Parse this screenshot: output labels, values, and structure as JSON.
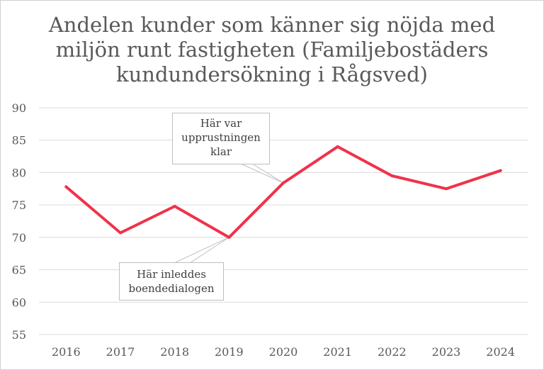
{
  "chart_data": {
    "type": "line",
    "title": "Andelen kunder som känner sig nöjda med miljön runt fastigheten (Familjebostäders kundundersökning i Rågsved)",
    "categories": [
      "2016",
      "2017",
      "2018",
      "2019",
      "2020",
      "2021",
      "2022",
      "2023",
      "2024"
    ],
    "series": [
      {
        "values": [
          77.8,
          70.7,
          74.8,
          70.0,
          78.4,
          84.0,
          79.5,
          77.5,
          80.3
        ]
      }
    ],
    "ylim": [
      55,
      90
    ],
    "yticks": [
      "55",
      "60",
      "65",
      "70",
      "75",
      "80",
      "85",
      "90"
    ],
    "grid": true,
    "line_color": "#f0324a",
    "annotations": [
      {
        "category": "2020",
        "value": 78.4,
        "lines": [
          "Här var",
          "upprustningen",
          "klar"
        ]
      },
      {
        "category": "2019",
        "value": 70.0,
        "lines": [
          "Här inleddes",
          "boendedialogen"
        ]
      }
    ]
  }
}
